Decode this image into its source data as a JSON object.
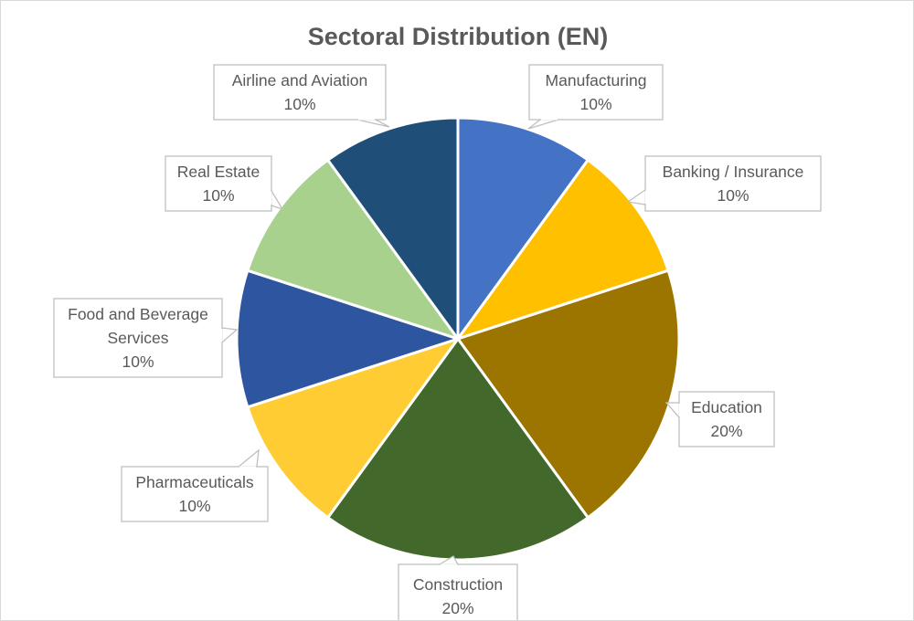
{
  "chart_data": {
    "type": "pie",
    "title": "Sectoral Distribution (EN)",
    "slices": [
      {
        "label": "Manufacturing",
        "value": 10,
        "display": "10%",
        "color": "#4472c4"
      },
      {
        "label": "Banking / Insurance",
        "value": 10,
        "display": "10%",
        "color": "#ffc000"
      },
      {
        "label": "Education",
        "value": 20,
        "display": "20%",
        "color": "#9c7400"
      },
      {
        "label": "Construction",
        "value": 20,
        "display": "20%",
        "color": "#43682b"
      },
      {
        "label": "Pharmaceuticals",
        "value": 10,
        "display": "10%",
        "color": "#ffcd33"
      },
      {
        "label": "Food and Beverage Services",
        "label_lines": [
          "Food and Beverage",
          "Services"
        ],
        "value": 10,
        "display": "10%",
        "color": "#2e55a0"
      },
      {
        "label": "Real Estate",
        "value": 10,
        "display": "10%",
        "color": "#a9d18e"
      },
      {
        "label": "Airline and Aviation",
        "value": 10,
        "display": "10%",
        "color": "#1f4e79"
      }
    ]
  }
}
